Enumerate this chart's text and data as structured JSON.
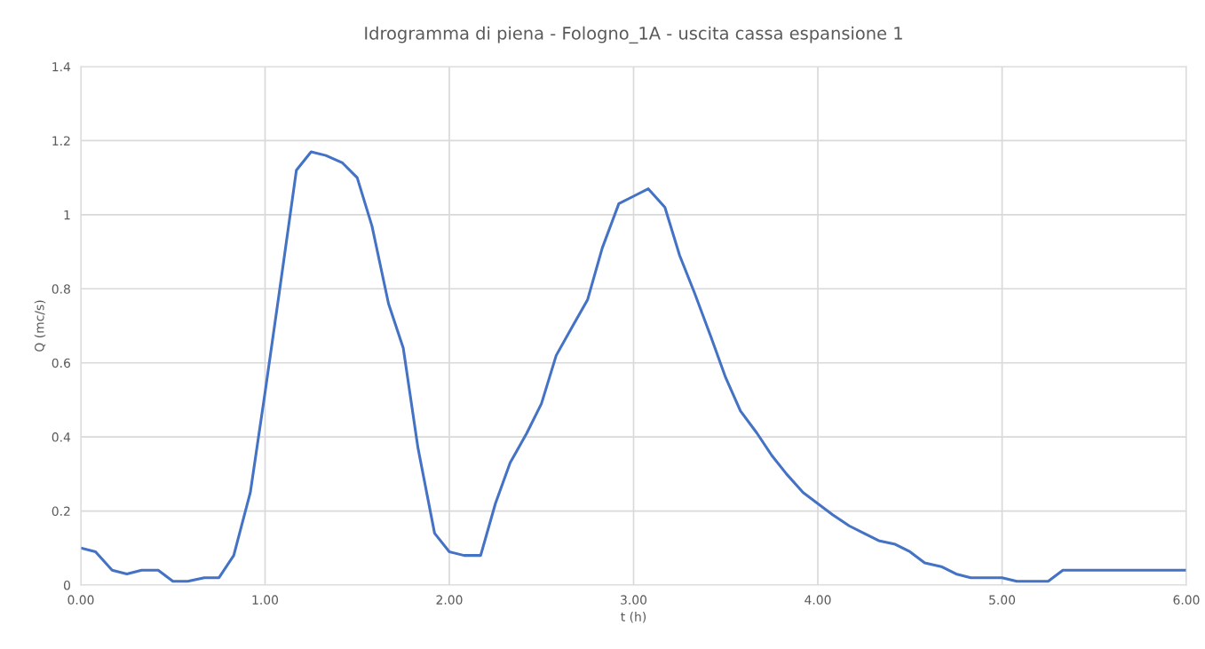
{
  "chart_data": {
    "type": "line",
    "title": "Idrogramma di piena - Fologno_1A - uscita cassa espansione 1",
    "xlabel": "t (h)",
    "ylabel": "Q (mc/s)",
    "x": [
      0,
      0.08,
      0.17,
      0.25,
      0.33,
      0.42,
      0.5,
      0.58,
      0.67,
      0.75,
      0.83,
      0.92,
      1.0,
      1.08,
      1.17,
      1.25,
      1.33,
      1.42,
      1.5,
      1.58,
      1.67,
      1.75,
      1.83,
      1.92,
      2.0,
      2.08,
      2.17,
      2.25,
      2.33,
      2.42,
      2.5,
      2.58,
      2.67,
      2.75,
      2.83,
      2.92,
      3.0,
      3.08,
      3.17,
      3.25,
      3.33,
      3.42,
      3.5,
      3.58,
      3.67,
      3.75,
      3.83,
      3.92,
      4.0,
      4.08,
      4.17,
      4.25,
      4.33,
      4.42,
      4.5,
      4.58,
      4.67,
      4.75,
      4.83,
      4.92,
      5.0,
      5.08,
      5.17,
      5.25,
      5.33,
      5.42,
      5.5,
      6.0
    ],
    "series": [
      {
        "color": "#4472c4",
        "values": [
          0.1,
          0.09,
          0.04,
          0.03,
          0.04,
          0.04,
          0.01,
          0.01,
          0.02,
          0.02,
          0.08,
          0.25,
          0.52,
          0.8,
          1.12,
          1.17,
          1.16,
          1.14,
          1.1,
          0.97,
          0.76,
          0.64,
          0.37,
          0.14,
          0.09,
          0.08,
          0.08,
          0.22,
          0.33,
          0.41,
          0.49,
          0.62,
          0.7,
          0.77,
          0.91,
          1.03,
          1.05,
          1.07,
          1.02,
          0.89,
          0.79,
          0.67,
          0.56,
          0.47,
          0.41,
          0.35,
          0.3,
          0.25,
          0.22,
          0.19,
          0.16,
          0.14,
          0.12,
          0.11,
          0.09,
          0.06,
          0.05,
          0.03,
          0.02,
          0.02,
          0.02,
          0.01,
          0.01,
          0.01,
          0.04,
          0.04,
          0.04,
          0.04
        ]
      }
    ],
    "xlim": [
      0,
      6
    ],
    "xticks": [
      {
        "value": 0,
        "label": "0.00"
      },
      {
        "value": 1,
        "label": "1.00"
      },
      {
        "value": 2,
        "label": "2.00"
      },
      {
        "value": 3,
        "label": "3.00"
      },
      {
        "value": 4,
        "label": "4.00"
      },
      {
        "value": 5,
        "label": "5.00"
      },
      {
        "value": 6,
        "label": "6.00"
      }
    ],
    "ylim": [
      0,
      1.4
    ],
    "yticks": [
      0,
      0.2,
      0.4,
      0.6,
      0.8,
      1,
      1.2,
      1.4
    ],
    "grid": true,
    "marker": "none",
    "line_style": "solid"
  }
}
